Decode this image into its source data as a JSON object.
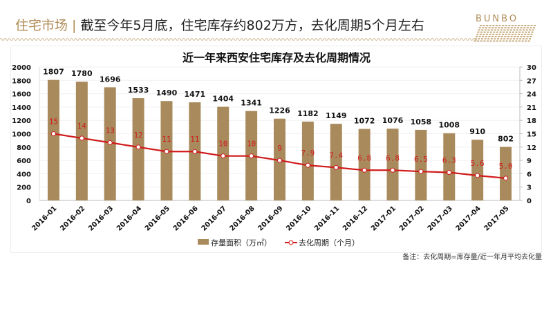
{
  "header": {
    "section": "住宅市场",
    "separator": "|",
    "headline": "截至今年5月底，住宅库存约802万方，去化周期5个月左右"
  },
  "logo": {
    "text": "BUNBO"
  },
  "note": "备注：去化周期=库存量/近一年月平均去化量",
  "colors": {
    "bar": "#a98a5c",
    "line": "#d01a1a",
    "accent": "#b08a55"
  },
  "chart_data": {
    "type": "bar+line",
    "title": "近一年来西安住宅库存及去化周期情况",
    "categories": [
      "2016-01",
      "2016-02",
      "2016-03",
      "2016-04",
      "2016-05",
      "2016-06",
      "2016-07",
      "2016-08",
      "2016-09",
      "2016-10",
      "2016-11",
      "2016-12",
      "2017-01",
      "2017-02",
      "2017-03",
      "2017-04",
      "2017-05"
    ],
    "series": [
      {
        "name": "存量面积（万㎡）",
        "type": "bar",
        "axis": "left",
        "values": [
          1807,
          1780,
          1696,
          1533,
          1490,
          1471,
          1404,
          1341,
          1226,
          1182,
          1149,
          1072,
          1076,
          1058,
          1008,
          910,
          802
        ],
        "labels": [
          "1807",
          "1780",
          "1696",
          "1533",
          "1490",
          "1471",
          "1404",
          "1341",
          "1226",
          "1182",
          "1149",
          "1072",
          "1076",
          "1058",
          "1008",
          "910",
          "802"
        ]
      },
      {
        "name": "去化周期（个月）",
        "type": "line",
        "axis": "right",
        "values": [
          15,
          14,
          13,
          12,
          11,
          11,
          10,
          10,
          9,
          7.9,
          7.4,
          6.8,
          6.8,
          6.5,
          6.3,
          5.6,
          5.0
        ],
        "labels": [
          "15",
          "14",
          "13",
          "12",
          "11",
          "11",
          "10",
          "10",
          "9",
          "7.9",
          "7.4",
          "6.8",
          "6.8",
          "6.5",
          "6.3",
          "5.6",
          "5.0"
        ]
      }
    ],
    "y_left": {
      "range": [
        0,
        2000
      ],
      "ticks": [
        "0",
        "200",
        "400",
        "600",
        "800",
        "1000",
        "1200",
        "1400",
        "1600",
        "1800",
        "2000"
      ]
    },
    "y_right": {
      "range": [
        0,
        30
      ],
      "ticks": [
        "0",
        "3",
        "6",
        "9",
        "12",
        "15",
        "18",
        "21",
        "24",
        "27",
        "30"
      ]
    },
    "grid": true,
    "legend": "bottom"
  }
}
